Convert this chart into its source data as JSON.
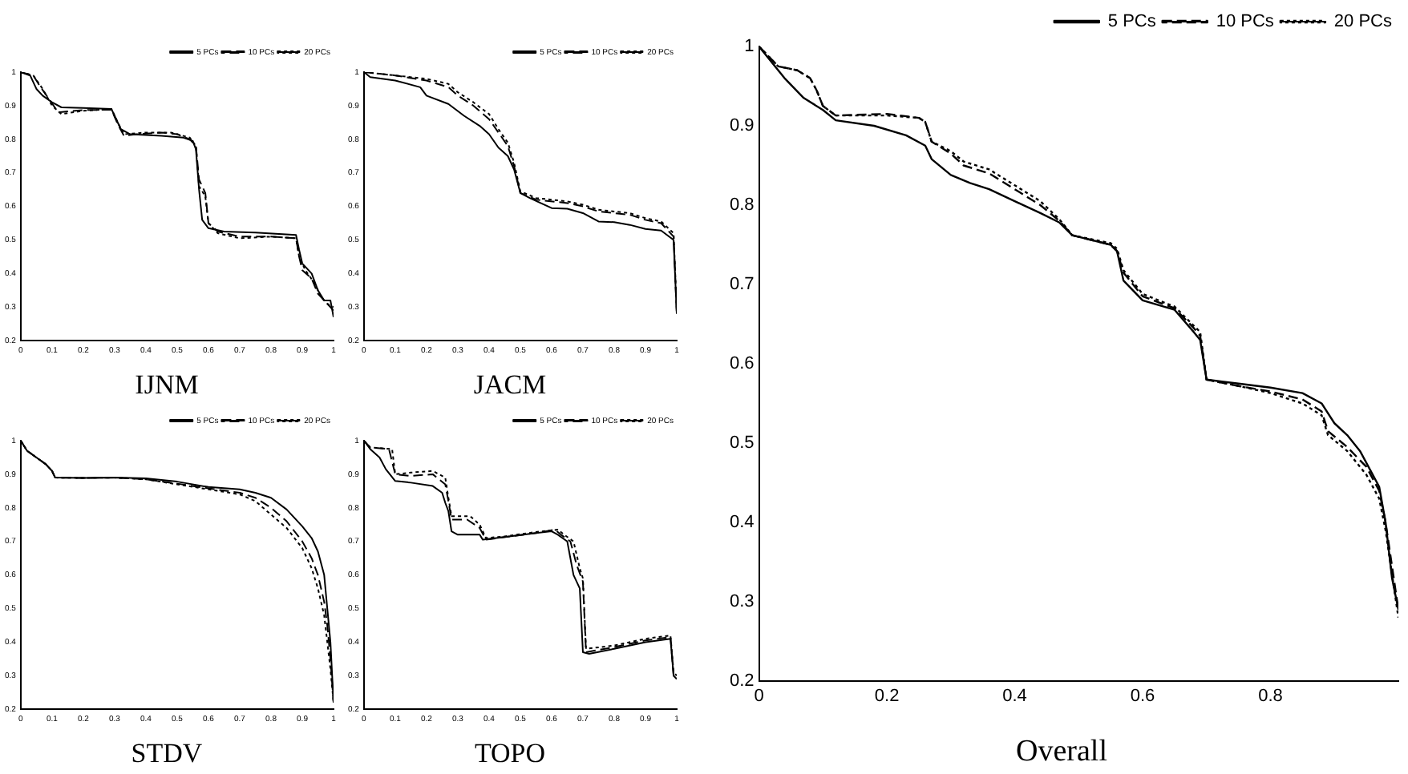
{
  "chart_data": [
    {
      "type": "line",
      "title": "IJNM",
      "xlim": [
        0,
        1
      ],
      "ylim": [
        0.2,
        1
      ],
      "xticks": [
        0,
        0.1,
        0.2,
        0.3,
        0.4,
        0.5,
        0.6,
        0.7,
        0.8,
        0.9,
        1
      ],
      "yticks": [
        0.2,
        0.3,
        0.4,
        0.5,
        0.6,
        0.7,
        0.8,
        0.9,
        1
      ],
      "legend": "top right",
      "grid": false,
      "marker": "none",
      "series": [
        {
          "name": "5 PCs",
          "color": "#000000",
          "line_style": "solid",
          "x": [
            0,
            0.03,
            0.05,
            0.07,
            0.1,
            0.13,
            0.2,
            0.29,
            0.3,
            0.32,
            0.35,
            0.45,
            0.52,
            0.55,
            0.56,
            0.57,
            0.58,
            0.6,
            0.65,
            0.75,
            0.88,
            0.89,
            0.9,
            0.93,
            0.95,
            0.97,
            0.99,
            1
          ],
          "values": [
            1,
            0.99,
            0.95,
            0.93,
            0.91,
            0.895,
            0.893,
            0.89,
            0.87,
            0.83,
            0.815,
            0.81,
            0.805,
            0.795,
            0.77,
            0.65,
            0.56,
            0.535,
            0.525,
            0.522,
            0.515,
            0.47,
            0.43,
            0.4,
            0.35,
            0.32,
            0.32,
            0.27
          ]
        },
        {
          "name": "10 PCs",
          "color": "#000000",
          "line_style": "dashed",
          "x": [
            0,
            0.04,
            0.06,
            0.09,
            0.12,
            0.15,
            0.2,
            0.29,
            0.31,
            0.33,
            0.37,
            0.45,
            0.5,
            0.54,
            0.56,
            0.57,
            0.59,
            0.6,
            0.63,
            0.7,
            0.8,
            0.88,
            0.89,
            0.9,
            0.93,
            0.95,
            0.98,
            1
          ],
          "values": [
            1,
            0.99,
            0.96,
            0.92,
            0.88,
            0.883,
            0.887,
            0.888,
            0.845,
            0.81,
            0.815,
            0.82,
            0.815,
            0.8,
            0.78,
            0.68,
            0.64,
            0.55,
            0.525,
            0.51,
            0.51,
            0.505,
            0.45,
            0.41,
            0.385,
            0.34,
            0.31,
            0.29
          ]
        },
        {
          "name": "20 PCs",
          "color": "#000000",
          "line_style": "dotted",
          "x": [
            0,
            0.04,
            0.07,
            0.1,
            0.13,
            0.2,
            0.29,
            0.31,
            0.33,
            0.4,
            0.48,
            0.54,
            0.56,
            0.57,
            0.59,
            0.6,
            0.63,
            0.7,
            0.8,
            0.88,
            0.89,
            0.91,
            0.94,
            0.96,
            0.98,
            1
          ],
          "values": [
            1,
            0.99,
            0.95,
            0.9,
            0.875,
            0.885,
            0.89,
            0.85,
            0.815,
            0.82,
            0.82,
            0.805,
            0.78,
            0.66,
            0.63,
            0.55,
            0.52,
            0.505,
            0.51,
            0.505,
            0.45,
            0.41,
            0.37,
            0.33,
            0.31,
            0.3
          ]
        }
      ]
    },
    {
      "type": "line",
      "title": "JACM",
      "xlim": [
        0,
        1
      ],
      "ylim": [
        0.2,
        1
      ],
      "xticks": [
        0,
        0.1,
        0.2,
        0.3,
        0.4,
        0.5,
        0.6,
        0.7,
        0.8,
        0.9,
        1
      ],
      "yticks": [
        0.2,
        0.3,
        0.4,
        0.5,
        0.6,
        0.7,
        0.8,
        0.9,
        1
      ],
      "legend": "top right",
      "grid": false,
      "marker": "none",
      "series": [
        {
          "name": "5 PCs",
          "color": "#000000",
          "line_style": "solid",
          "x": [
            0,
            0.02,
            0.1,
            0.18,
            0.2,
            0.27,
            0.32,
            0.37,
            0.4,
            0.43,
            0.46,
            0.48,
            0.5,
            0.53,
            0.6,
            0.65,
            0.7,
            0.75,
            0.8,
            0.85,
            0.9,
            0.95,
            0.99,
            1
          ],
          "values": [
            1,
            0.985,
            0.975,
            0.955,
            0.93,
            0.905,
            0.87,
            0.84,
            0.815,
            0.775,
            0.75,
            0.71,
            0.64,
            0.625,
            0.595,
            0.593,
            0.58,
            0.555,
            0.553,
            0.545,
            0.533,
            0.528,
            0.5,
            0.28
          ]
        },
        {
          "name": "10 PCs",
          "color": "#000000",
          "line_style": "dashed",
          "x": [
            0,
            0.05,
            0.1,
            0.2,
            0.27,
            0.3,
            0.35,
            0.4,
            0.43,
            0.46,
            0.48,
            0.5,
            0.55,
            0.65,
            0.7,
            0.75,
            0.8,
            0.85,
            0.9,
            0.95,
            0.99,
            1
          ],
          "values": [
            1,
            0.995,
            0.99,
            0.975,
            0.955,
            0.93,
            0.9,
            0.86,
            0.82,
            0.78,
            0.72,
            0.64,
            0.62,
            0.61,
            0.6,
            0.585,
            0.58,
            0.575,
            0.56,
            0.55,
            0.51,
            0.28
          ]
        },
        {
          "name": "20 PCs",
          "color": "#000000",
          "line_style": "dotted",
          "x": [
            0,
            0.05,
            0.1,
            0.2,
            0.27,
            0.3,
            0.35,
            0.4,
            0.43,
            0.46,
            0.48,
            0.5,
            0.55,
            0.65,
            0.7,
            0.75,
            0.8,
            0.85,
            0.9,
            0.95,
            0.99,
            1
          ],
          "values": [
            1,
            0.995,
            0.99,
            0.98,
            0.965,
            0.94,
            0.91,
            0.875,
            0.83,
            0.79,
            0.73,
            0.645,
            0.625,
            0.615,
            0.605,
            0.59,
            0.585,
            0.58,
            0.565,
            0.555,
            0.52,
            0.29
          ]
        }
      ]
    },
    {
      "type": "line",
      "title": "STDV",
      "xlim": [
        0,
        1
      ],
      "ylim": [
        0.2,
        1
      ],
      "xticks": [
        0,
        0.1,
        0.2,
        0.3,
        0.4,
        0.5,
        0.6,
        0.7,
        0.8,
        0.9,
        1
      ],
      "yticks": [
        0.2,
        0.3,
        0.4,
        0.5,
        0.6,
        0.7,
        0.8,
        0.9,
        1
      ],
      "legend": "top right",
      "grid": false,
      "marker": "none",
      "series": [
        {
          "name": "5 PCs",
          "color": "#000000",
          "line_style": "solid",
          "x": [
            0,
            0.02,
            0.05,
            0.08,
            0.1,
            0.11,
            0.2,
            0.3,
            0.4,
            0.5,
            0.6,
            0.7,
            0.75,
            0.8,
            0.85,
            0.9,
            0.93,
            0.95,
            0.97,
            0.98,
            0.99,
            1
          ],
          "values": [
            1,
            0.97,
            0.95,
            0.93,
            0.91,
            0.89,
            0.889,
            0.89,
            0.888,
            0.878,
            0.862,
            0.855,
            0.845,
            0.83,
            0.795,
            0.745,
            0.71,
            0.67,
            0.6,
            0.5,
            0.4,
            0.22
          ]
        },
        {
          "name": "10 PCs",
          "color": "#000000",
          "line_style": "dashed",
          "x": [
            0,
            0.02,
            0.05,
            0.08,
            0.1,
            0.11,
            0.2,
            0.3,
            0.4,
            0.5,
            0.6,
            0.7,
            0.75,
            0.8,
            0.85,
            0.9,
            0.93,
            0.95,
            0.97,
            0.98,
            0.99,
            1
          ],
          "values": [
            1,
            0.97,
            0.95,
            0.93,
            0.91,
            0.89,
            0.889,
            0.89,
            0.885,
            0.872,
            0.858,
            0.845,
            0.83,
            0.8,
            0.76,
            0.7,
            0.65,
            0.6,
            0.52,
            0.45,
            0.35,
            0.22
          ]
        },
        {
          "name": "20 PCs",
          "color": "#000000",
          "line_style": "dotted",
          "x": [
            0,
            0.02,
            0.05,
            0.08,
            0.1,
            0.11,
            0.2,
            0.3,
            0.4,
            0.5,
            0.6,
            0.7,
            0.75,
            0.8,
            0.85,
            0.9,
            0.93,
            0.95,
            0.97,
            0.98,
            0.99,
            1
          ],
          "values": [
            1,
            0.97,
            0.95,
            0.93,
            0.91,
            0.89,
            0.889,
            0.89,
            0.885,
            0.87,
            0.855,
            0.84,
            0.82,
            0.78,
            0.74,
            0.68,
            0.62,
            0.56,
            0.48,
            0.4,
            0.32,
            0.22
          ]
        }
      ]
    },
    {
      "type": "line",
      "title": "TOPO",
      "xlim": [
        0,
        1
      ],
      "ylim": [
        0.2,
        1
      ],
      "xticks": [
        0,
        0.1,
        0.2,
        0.3,
        0.4,
        0.5,
        0.6,
        0.7,
        0.8,
        0.9,
        1
      ],
      "yticks": [
        0.2,
        0.3,
        0.4,
        0.5,
        0.6,
        0.7,
        0.8,
        0.9,
        1
      ],
      "legend": "top right",
      "grid": false,
      "marker": "none",
      "series": [
        {
          "name": "5 PCs",
          "color": "#000000",
          "line_style": "solid",
          "x": [
            0,
            0.02,
            0.05,
            0.07,
            0.1,
            0.15,
            0.22,
            0.25,
            0.26,
            0.27,
            0.28,
            0.3,
            0.37,
            0.38,
            0.45,
            0.55,
            0.6,
            0.62,
            0.65,
            0.67,
            0.69,
            0.7,
            0.72,
            0.8,
            0.9,
            0.98,
            0.99,
            1
          ],
          "values": [
            1,
            0.975,
            0.95,
            0.915,
            0.88,
            0.875,
            0.865,
            0.845,
            0.815,
            0.79,
            0.73,
            0.72,
            0.72,
            0.705,
            0.713,
            0.725,
            0.73,
            0.72,
            0.7,
            0.6,
            0.56,
            0.37,
            0.365,
            0.38,
            0.4,
            0.41,
            0.3,
            0.29
          ]
        },
        {
          "name": "10 PCs",
          "color": "#000000",
          "line_style": "dashed",
          "x": [
            0,
            0.02,
            0.08,
            0.1,
            0.15,
            0.22,
            0.26,
            0.27,
            0.28,
            0.33,
            0.37,
            0.39,
            0.45,
            0.55,
            0.61,
            0.63,
            0.66,
            0.68,
            0.7,
            0.71,
            0.8,
            0.9,
            0.98,
            0.99,
            1
          ],
          "values": [
            1,
            0.98,
            0.975,
            0.9,
            0.895,
            0.9,
            0.87,
            0.82,
            0.765,
            0.765,
            0.74,
            0.705,
            0.713,
            0.725,
            0.735,
            0.72,
            0.7,
            0.63,
            0.58,
            0.37,
            0.385,
            0.405,
            0.415,
            0.3,
            0.3
          ]
        },
        {
          "name": "20 PCs",
          "color": "#000000",
          "line_style": "dotted",
          "x": [
            0,
            0.02,
            0.09,
            0.1,
            0.15,
            0.22,
            0.26,
            0.27,
            0.28,
            0.34,
            0.37,
            0.39,
            0.45,
            0.55,
            0.62,
            0.64,
            0.67,
            0.69,
            0.7,
            0.71,
            0.8,
            0.9,
            0.98,
            0.99,
            1
          ],
          "values": [
            1,
            0.98,
            0.975,
            0.9,
            0.905,
            0.91,
            0.89,
            0.83,
            0.775,
            0.775,
            0.75,
            0.71,
            0.715,
            0.728,
            0.735,
            0.72,
            0.7,
            0.62,
            0.59,
            0.38,
            0.39,
            0.41,
            0.42,
            0.31,
            0.3
          ]
        }
      ]
    },
    {
      "type": "line",
      "title": "Overall",
      "xlim": [
        0,
        1
      ],
      "ylim": [
        0.2,
        1
      ],
      "xticks": [
        0,
        0.2,
        0.4,
        0.6,
        0.8
      ],
      "yticks": [
        0.2,
        0.3,
        0.4,
        0.5,
        0.6,
        0.7,
        0.8,
        0.9,
        1
      ],
      "legend": "top right",
      "grid": false,
      "marker": "none",
      "series": [
        {
          "name": "5 PCs",
          "color": "#000000",
          "line_style": "solid",
          "x": [
            0,
            0.04,
            0.07,
            0.1,
            0.12,
            0.18,
            0.23,
            0.26,
            0.27,
            0.3,
            0.33,
            0.36,
            0.4,
            0.44,
            0.47,
            0.49,
            0.55,
            0.56,
            0.57,
            0.6,
            0.65,
            0.68,
            0.69,
            0.7,
            0.75,
            0.8,
            0.85,
            0.88,
            0.9,
            0.92,
            0.94,
            0.96,
            0.97,
            0.98,
            0.99,
            1
          ],
          "values": [
            1,
            0.96,
            0.935,
            0.92,
            0.907,
            0.9,
            0.888,
            0.875,
            0.858,
            0.838,
            0.828,
            0.82,
            0.805,
            0.79,
            0.778,
            0.762,
            0.75,
            0.742,
            0.705,
            0.68,
            0.668,
            0.64,
            0.63,
            0.58,
            0.575,
            0.57,
            0.563,
            0.55,
            0.525,
            0.51,
            0.49,
            0.46,
            0.445,
            0.4,
            0.33,
            0.29
          ]
        },
        {
          "name": "10 PCs",
          "color": "#000000",
          "line_style": "dashed",
          "x": [
            0,
            0.03,
            0.06,
            0.08,
            0.09,
            0.1,
            0.12,
            0.2,
            0.25,
            0.26,
            0.27,
            0.3,
            0.32,
            0.36,
            0.4,
            0.44,
            0.47,
            0.49,
            0.55,
            0.56,
            0.57,
            0.6,
            0.65,
            0.68,
            0.69,
            0.7,
            0.75,
            0.8,
            0.85,
            0.88,
            0.89,
            0.92,
            0.95,
            0.97,
            0.98,
            1
          ],
          "values": [
            1,
            0.975,
            0.97,
            0.96,
            0.945,
            0.925,
            0.913,
            0.915,
            0.91,
            0.905,
            0.88,
            0.865,
            0.85,
            0.84,
            0.82,
            0.8,
            0.78,
            0.762,
            0.75,
            0.742,
            0.715,
            0.685,
            0.67,
            0.645,
            0.635,
            0.58,
            0.572,
            0.565,
            0.555,
            0.54,
            0.515,
            0.495,
            0.47,
            0.44,
            0.4,
            0.29
          ]
        },
        {
          "name": "20 PCs",
          "color": "#000000",
          "line_style": "dotted",
          "x": [
            0,
            0.03,
            0.06,
            0.08,
            0.09,
            0.1,
            0.12,
            0.2,
            0.25,
            0.26,
            0.27,
            0.3,
            0.32,
            0.36,
            0.4,
            0.44,
            0.47,
            0.49,
            0.55,
            0.56,
            0.57,
            0.6,
            0.65,
            0.68,
            0.69,
            0.7,
            0.75,
            0.8,
            0.85,
            0.88,
            0.89,
            0.92,
            0.95,
            0.97,
            0.98,
            1
          ],
          "values": [
            1,
            0.975,
            0.97,
            0.96,
            0.945,
            0.925,
            0.913,
            0.913,
            0.91,
            0.905,
            0.88,
            0.868,
            0.855,
            0.845,
            0.825,
            0.805,
            0.782,
            0.762,
            0.752,
            0.745,
            0.718,
            0.688,
            0.672,
            0.648,
            0.64,
            0.58,
            0.572,
            0.563,
            0.55,
            0.535,
            0.51,
            0.49,
            0.46,
            0.43,
            0.39,
            0.28
          ]
        }
      ]
    }
  ]
}
